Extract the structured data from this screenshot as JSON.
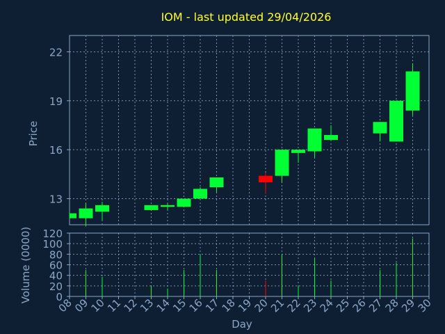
{
  "chart_data": {
    "type": "candlestick",
    "title": "IOM - last updated 29/04/2026",
    "xlabel": "Day",
    "price_ylabel": "Price",
    "volume_ylabel": "Volume (0000)",
    "x_ticks": [
      "08",
      "09",
      "10",
      "11",
      "12",
      "13",
      "14",
      "15",
      "16",
      "17",
      "18",
      "19",
      "20",
      "21",
      "22",
      "23",
      "24",
      "25",
      "26",
      "27",
      "28",
      "29",
      "30"
    ],
    "price_ylim": [
      11.4,
      23.0
    ],
    "price_ticks": [
      13,
      16,
      19,
      22
    ],
    "volume_ylim": [
      0,
      120
    ],
    "volume_ticks": [
      0,
      20,
      40,
      60,
      80,
      100,
      120
    ],
    "grid": true,
    "colors": {
      "up": "#00ff33",
      "down": "#ff0000",
      "background": "#0f1f33",
      "title": "#ffff33",
      "axis": "#8aa7c8"
    },
    "candles": [
      {
        "day": 8,
        "open": 11.8,
        "high": 12.2,
        "low": 11.8,
        "close": 12.1,
        "volume": 0
      },
      {
        "day": 9,
        "open": 11.8,
        "high": 12.7,
        "low": 11.3,
        "close": 12.4,
        "volume": 50
      },
      {
        "day": 10,
        "open": 12.2,
        "high": 12.8,
        "low": 11.7,
        "close": 12.6,
        "volume": 37
      },
      {
        "day": 13,
        "open": 12.3,
        "high": 12.6,
        "low": 12.3,
        "close": 12.6,
        "volume": 20
      },
      {
        "day": 14,
        "open": 12.5,
        "high": 12.7,
        "low": 12.3,
        "close": 12.6,
        "volume": 15
      },
      {
        "day": 15,
        "open": 12.5,
        "high": 13.0,
        "low": 12.5,
        "close": 13.0,
        "volume": 50
      },
      {
        "day": 16,
        "open": 13.0,
        "high": 13.7,
        "low": 13.0,
        "close": 13.6,
        "volume": 80
      },
      {
        "day": 17,
        "open": 13.7,
        "high": 14.3,
        "low": 13.4,
        "close": 14.3,
        "volume": 50
      },
      {
        "day": 20,
        "open": 14.4,
        "high": 14.6,
        "low": 13.3,
        "close": 14.0,
        "volume": 30
      },
      {
        "day": 21,
        "open": 14.4,
        "high": 16.0,
        "low": 14.0,
        "close": 16.0,
        "volume": 80
      },
      {
        "day": 22,
        "open": 15.8,
        "high": 16.0,
        "low": 15.2,
        "close": 16.0,
        "volume": 20
      },
      {
        "day": 23,
        "open": 15.9,
        "high": 17.3,
        "low": 15.5,
        "close": 17.3,
        "volume": 72
      },
      {
        "day": 24,
        "open": 16.6,
        "high": 17.5,
        "low": 16.6,
        "close": 16.9,
        "volume": 30
      },
      {
        "day": 27,
        "open": 17.0,
        "high": 17.7,
        "low": 16.5,
        "close": 17.7,
        "volume": 50
      },
      {
        "day": 28,
        "open": 16.5,
        "high": 19.0,
        "low": 16.5,
        "close": 19.0,
        "volume": 64
      },
      {
        "day": 29,
        "open": 18.4,
        "high": 21.3,
        "low": 18.1,
        "close": 20.8,
        "volume": 110
      }
    ]
  }
}
